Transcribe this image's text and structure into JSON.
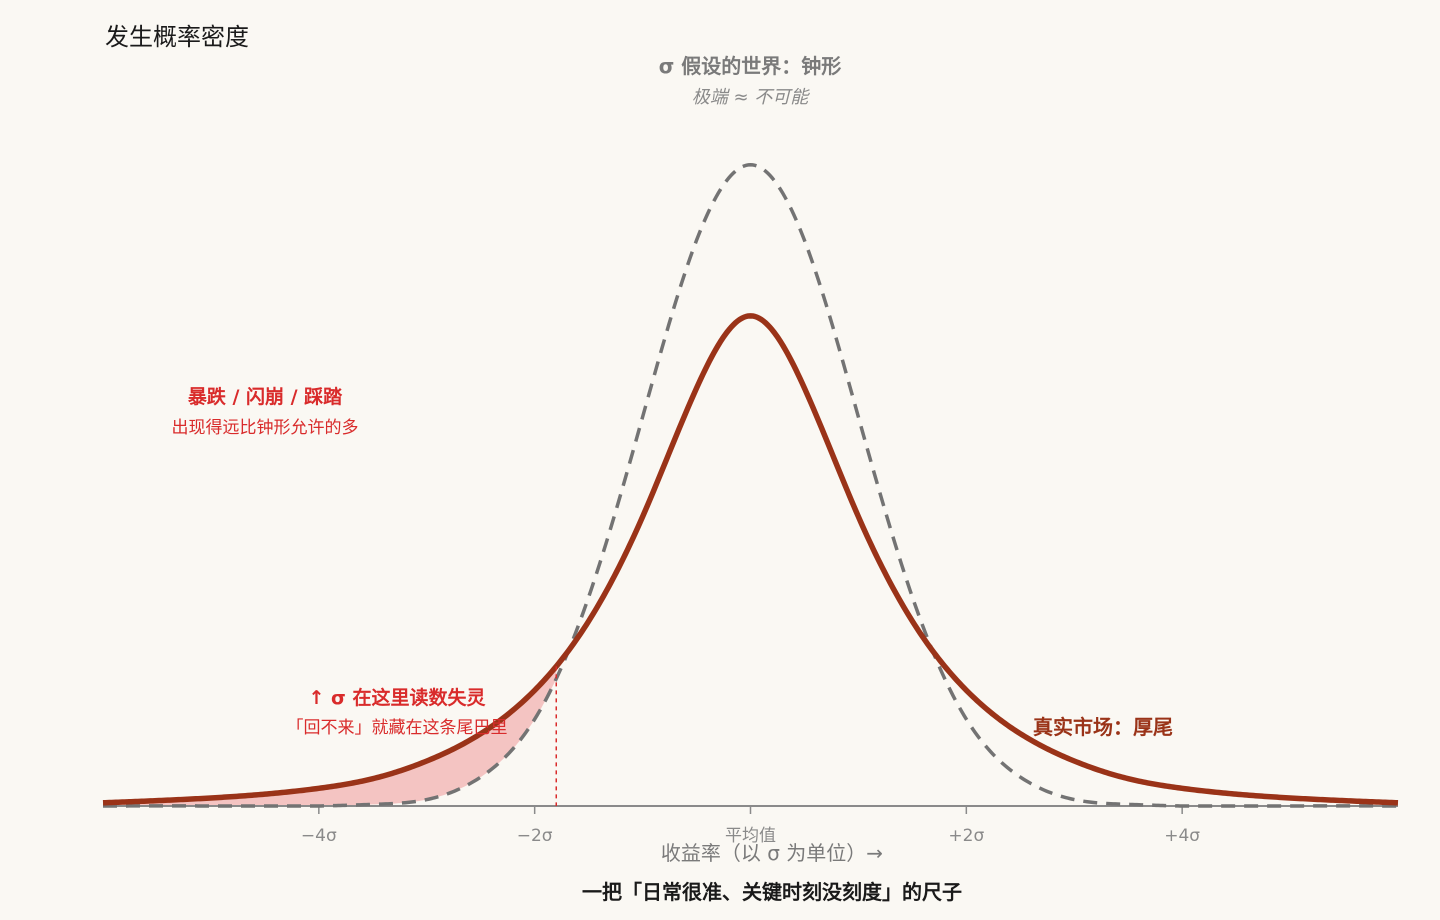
{
  "chart_data": {
    "type": "line",
    "ylabel": "发生概率密度",
    "xlabel": "收益率（以 σ 为单位）→",
    "caption": "一把「日常很准、关键时刻没刻度」的尺子",
    "xlim": [
      -6,
      6
    ],
    "ylim": [
      0,
      0.42
    ],
    "x_ticks": [
      {
        "value": -4,
        "label": "−4σ"
      },
      {
        "value": -2,
        "label": "−2σ"
      },
      {
        "value": 0,
        "label": "平均值"
      },
      {
        "value": 2,
        "label": "+2σ"
      },
      {
        "value": 4,
        "label": "+4σ"
      }
    ],
    "series": [
      {
        "name": "σ 假设的世界：钟形",
        "style": "dashed",
        "color": "#737373",
        "x": [
          -6,
          -5,
          -4,
          -3.5,
          -3,
          -2.5,
          -2,
          -1.5,
          -1,
          -0.5,
          0,
          0.5,
          1,
          1.5,
          2,
          2.5,
          3,
          3.5,
          4,
          5,
          6
        ],
        "y": [
          0,
          0,
          0,
          0.001,
          0.004,
          0.018,
          0.054,
          0.13,
          0.242,
          0.352,
          0.399,
          0.352,
          0.242,
          0.13,
          0.054,
          0.018,
          0.004,
          0.001,
          0,
          0,
          0
        ]
      },
      {
        "name": "真实市场：厚尾",
        "style": "solid",
        "color": "#9a3318",
        "x": [
          -6,
          -5,
          -4,
          -3.5,
          -3,
          -2.5,
          -2,
          -1.5,
          -1,
          -0.5,
          0,
          0.5,
          1,
          1.5,
          2,
          2.5,
          3,
          3.5,
          4,
          5,
          6
        ],
        "y": [
          0.002,
          0.005,
          0.011,
          0.017,
          0.028,
          0.045,
          0.072,
          0.115,
          0.18,
          0.26,
          0.305,
          0.26,
          0.18,
          0.115,
          0.072,
          0.045,
          0.028,
          0.017,
          0.011,
          0.005,
          0.002
        ]
      }
    ],
    "threshold": {
      "x": -1.8
    },
    "annotations": {
      "bell_title": "σ 假设的世界：钟形",
      "bell_sub": "极端 ≈ 不可能",
      "crash_title": "暴跌 / 闪崩 / 踩踏",
      "crash_sub": "出现得远比钟形允许的多",
      "fail_title": "↑ σ 在这里读数失灵",
      "fail_sub": "「回不来」就藏在这条尾巴里",
      "real_label": "真实市场：厚尾"
    },
    "colors": {
      "background": "#faf8f3",
      "bell": "#737373",
      "real": "#9a3318",
      "alert": "#d92b2b",
      "shade": "#f4c4c2",
      "axis": "#8a8a8a"
    }
  }
}
